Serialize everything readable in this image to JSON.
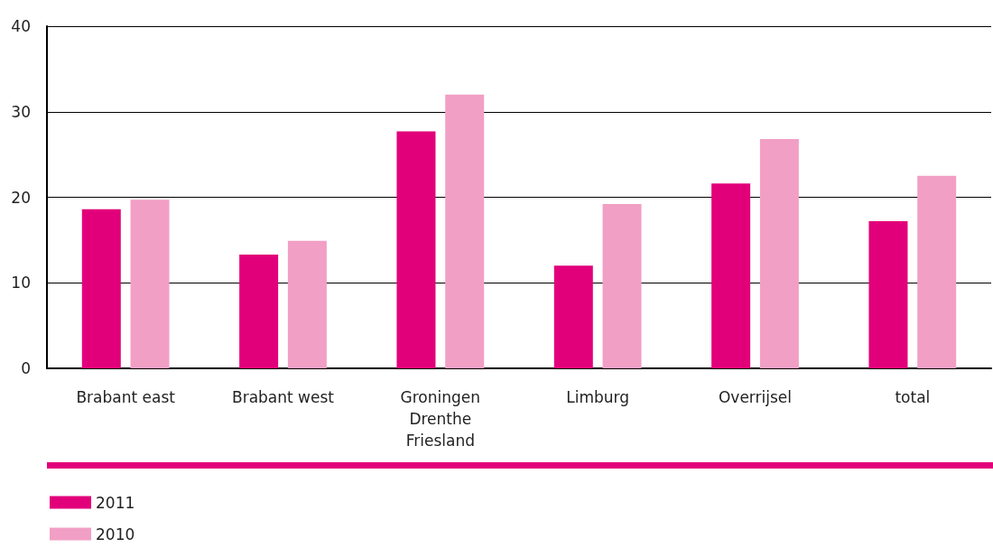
{
  "chart_data": {
    "type": "bar",
    "categories": [
      "Brabant east",
      "Brabant west",
      "Groningen\nDrenthe\nFriesland",
      "Limburg",
      "Overrijsel",
      "total"
    ],
    "series": [
      {
        "name": "2011",
        "color": "#e2007a",
        "values": [
          18.6,
          13.3,
          27.7,
          12.0,
          21.6,
          17.2
        ]
      },
      {
        "name": "2010",
        "color": "#f29fc5",
        "values": [
          19.7,
          14.9,
          32.0,
          19.2,
          26.8,
          22.5
        ]
      }
    ],
    "ylim": [
      0,
      40
    ],
    "yticks": [
      0,
      10,
      20,
      30,
      40
    ],
    "grid": "y",
    "legend": "bottom left"
  }
}
